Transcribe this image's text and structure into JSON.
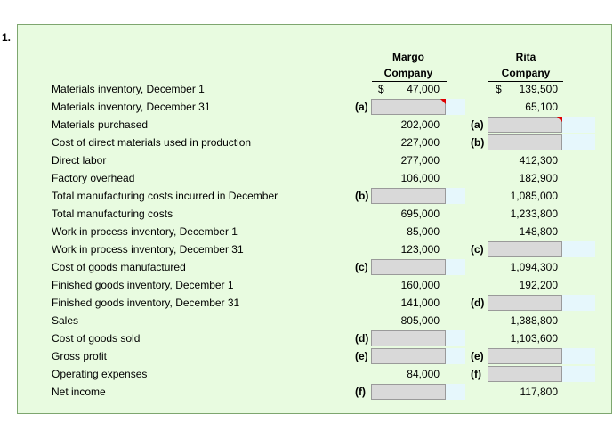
{
  "question_number": "1.",
  "headers": {
    "margo": [
      "Margo",
      "Company"
    ],
    "rita": [
      "Rita",
      "Company"
    ]
  },
  "currency_symbol": "$",
  "rows": [
    {
      "label": "Materials inventory, December 1",
      "m_letter": "",
      "m_value": "47,000",
      "m_dollar": true,
      "m_input": false,
      "r_letter": "",
      "r_value": "139,500",
      "r_dollar": true,
      "r_input": false
    },
    {
      "label": "Materials inventory, December 31",
      "m_letter": "(a)",
      "m_value": "",
      "m_input": true,
      "m_flag": true,
      "r_letter": "",
      "r_value": "65,100",
      "r_input": false
    },
    {
      "label": "Materials purchased",
      "m_letter": "",
      "m_value": "202,000",
      "m_input": false,
      "r_letter": "(a)",
      "r_value": "",
      "r_input": true,
      "r_flag": true
    },
    {
      "label": "Cost of direct materials used in production",
      "m_letter": "",
      "m_value": "227,000",
      "m_input": false,
      "r_letter": "(b)",
      "r_value": "",
      "r_input": true
    },
    {
      "label": "Direct labor",
      "m_letter": "",
      "m_value": "277,000",
      "m_input": false,
      "r_letter": "",
      "r_value": "412,300",
      "r_input": false
    },
    {
      "label": "Factory overhead",
      "m_letter": "",
      "m_value": "106,000",
      "m_input": false,
      "r_letter": "",
      "r_value": "182,900",
      "r_input": false
    },
    {
      "label": "Total manufacturing costs incurred in December",
      "m_letter": "(b)",
      "m_value": "",
      "m_input": true,
      "r_letter": "",
      "r_value": "1,085,000",
      "r_input": false
    },
    {
      "label": "Total manufacturing costs",
      "m_letter": "",
      "m_value": "695,000",
      "m_input": false,
      "r_letter": "",
      "r_value": "1,233,800",
      "r_input": false
    },
    {
      "label": "Work in process inventory, December 1",
      "m_letter": "",
      "m_value": "85,000",
      "m_input": false,
      "r_letter": "",
      "r_value": "148,800",
      "r_input": false
    },
    {
      "label": "Work in process inventory, December 31",
      "m_letter": "",
      "m_value": "123,000",
      "m_input": false,
      "r_letter": "(c)",
      "r_value": "",
      "r_input": true
    },
    {
      "label": "Cost of goods manufactured",
      "m_letter": "(c)",
      "m_value": "",
      "m_input": true,
      "r_letter": "",
      "r_value": "1,094,300",
      "r_input": false
    },
    {
      "label": "Finished goods inventory, December 1",
      "m_letter": "",
      "m_value": "160,000",
      "m_input": false,
      "r_letter": "",
      "r_value": "192,200",
      "r_input": false
    },
    {
      "label": "Finished goods inventory, December 31",
      "m_letter": "",
      "m_value": "141,000",
      "m_input": false,
      "r_letter": "(d)",
      "r_value": "",
      "r_input": true
    },
    {
      "label": "Sales",
      "m_letter": "",
      "m_value": "805,000",
      "m_input": false,
      "r_letter": "",
      "r_value": "1,388,800",
      "r_input": false
    },
    {
      "label": "Cost of goods sold",
      "m_letter": "(d)",
      "m_value": "",
      "m_input": true,
      "r_letter": "",
      "r_value": "1,103,600",
      "r_input": false
    },
    {
      "label": "Gross profit",
      "m_letter": "(e)",
      "m_value": "",
      "m_input": true,
      "r_letter": "(e)",
      "r_value": "",
      "r_input": true
    },
    {
      "label": "Operating expenses",
      "m_letter": "",
      "m_value": "84,000",
      "m_input": false,
      "r_letter": "(f)",
      "r_value": "",
      "r_input": true
    },
    {
      "label": "Net income",
      "m_letter": "(f)",
      "m_value": "",
      "m_input": true,
      "r_letter": "",
      "r_value": "117,800",
      "r_input": false
    }
  ]
}
